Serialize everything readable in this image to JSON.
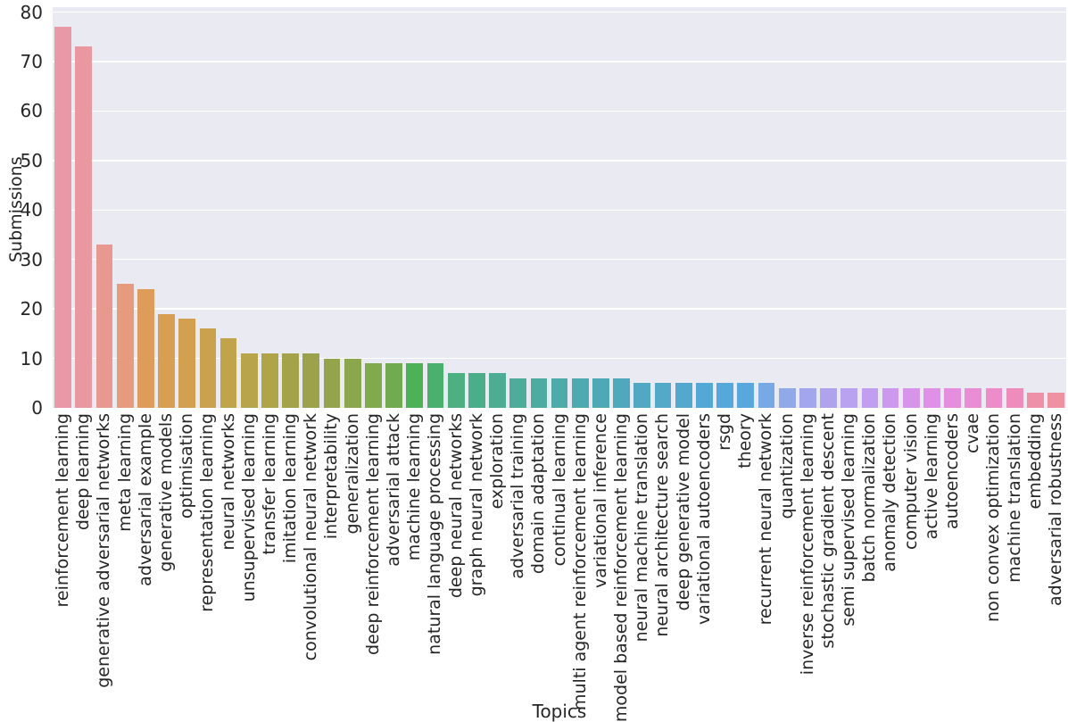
{
  "chart_data": {
    "type": "bar",
    "title": "",
    "xlabel": "Topics",
    "ylabel": "Submissions",
    "ylim": [
      0,
      81
    ],
    "yticks": [
      0,
      10,
      20,
      30,
      40,
      50,
      60,
      70,
      80
    ],
    "grid": "horizontal white gridlines on light lavender plot background",
    "legend_position": "none",
    "plot_bg": "#eaeaf2",
    "fig_bg": "#ffffff",
    "grid_color": "#ffffff",
    "text_color": "#262626",
    "categories": [
      "reinforcement learning",
      "deep learning",
      "generative adversarial networks",
      "meta learning",
      "adversarial example",
      "generative models",
      "optimisation",
      "representation learning",
      "neural networks",
      "unsupervised learning",
      "transfer learning",
      "imitation learning",
      "convolutional neural network",
      "interpretability",
      "generalization",
      "deep reinforcement learning",
      "adversarial attack",
      "machine learning",
      "natural language processing",
      "deep neural networks",
      "graph neural network",
      "exploration",
      "adversarial training",
      "domain adaptation",
      "continual learning",
      "multi agent reinforcement learning",
      "variational inference",
      "model based reinforcement learning",
      "neural machine translation",
      "neural architecture search",
      "deep generative model",
      "variational autoencoders",
      "rsgd",
      "theory",
      "recurrent neural network",
      "quantization",
      "inverse reinforcement learning",
      "stochastic gradient descent",
      "semi supervised learning",
      "batch normalization",
      "anomaly detection",
      "computer vision",
      "active learning",
      "autoencoders",
      "cvae",
      "non convex optimization",
      "machine translation",
      "embedding",
      "adversarial robustness"
    ],
    "values": [
      77,
      73,
      33,
      25,
      24,
      19,
      18,
      16,
      14,
      11,
      11,
      11,
      11,
      10,
      10,
      9,
      9,
      9,
      9,
      7,
      7,
      7,
      6,
      6,
      6,
      6,
      6,
      6,
      5,
      5,
      5,
      5,
      5,
      5,
      5,
      4,
      4,
      4,
      4,
      4,
      4,
      4,
      4,
      4,
      4,
      4,
      4,
      3,
      3
    ],
    "bar_colors": [
      "#e998a8",
      "#e9989f",
      "#e79990",
      "#e69a7e",
      "#dd9c59",
      "#d89f52",
      "#d2a04e",
      "#caa24d",
      "#c0a34b",
      "#b8a44a",
      "#b0a449",
      "#a5a34a",
      "#9ca24b",
      "#94a44c",
      "#8aa74d",
      "#7faa4e",
      "#70ac4f",
      "#4fb156",
      "#49b06e",
      "#4db080",
      "#4bae8a",
      "#4cad92",
      "#4dac9a",
      "#4daca2",
      "#4dabaa",
      "#4daab0",
      "#4ea9b6",
      "#4fa8bc",
      "#50a8c2",
      "#52a9c8",
      "#53a8d0",
      "#54a8d6",
      "#55a9da",
      "#58a8dd",
      "#77aae5",
      "#90aae9",
      "#a2a6ec",
      "#afa3ee",
      "#b9a2ef",
      "#c19ef0",
      "#cc99ee",
      "#d795ea",
      "#e090e6",
      "#e58ede",
      "#e98dd4",
      "#ec8cc8",
      "#ee8cbc",
      "#ee90a8",
      "#ee92a2"
    ]
  }
}
